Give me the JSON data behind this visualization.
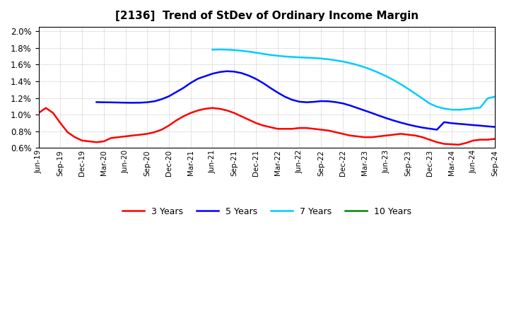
{
  "title": "[2136]  Trend of StDev of Ordinary Income Margin",
  "title_fontsize": 11,
  "ylim": [
    0.006,
    0.0205
  ],
  "yticks": [
    0.006,
    0.008,
    0.01,
    0.012,
    0.014,
    0.016,
    0.018,
    0.02
  ],
  "background_color": "#ffffff",
  "grid_color": "#888888",
  "series": {
    "3 Years": {
      "color": "#ff0000",
      "x": [
        0,
        1,
        2,
        3,
        4,
        5,
        6,
        7,
        8,
        9,
        10,
        11,
        12,
        13,
        14,
        15,
        16,
        17,
        18,
        19,
        20,
        21,
        22,
        23,
        24,
        25,
        26,
        27,
        28,
        29,
        30,
        31,
        32,
        33,
        34,
        35,
        36,
        37,
        38,
        39,
        40,
        41,
        42,
        43,
        44,
        45,
        46,
        47,
        48,
        49,
        50,
        51,
        52,
        53,
        54,
        55,
        56,
        57,
        58,
        59,
        60,
        61,
        62,
        63
      ],
      "y": [
        0.0102,
        0.0108,
        0.0102,
        0.009,
        0.0079,
        0.0073,
        0.0069,
        0.0068,
        0.0067,
        0.0068,
        0.0072,
        0.0073,
        0.0074,
        0.0075,
        0.0076,
        0.0077,
        0.0079,
        0.0082,
        0.0087,
        0.0093,
        0.0098,
        0.0102,
        0.0105,
        0.0107,
        0.0108,
        0.0107,
        0.0105,
        0.0102,
        0.0098,
        0.0094,
        0.009,
        0.0087,
        0.0085,
        0.0083,
        0.0083,
        0.0083,
        0.0084,
        0.0084,
        0.0083,
        0.0082,
        0.0081,
        0.0079,
        0.0077,
        0.0075,
        0.0074,
        0.0073,
        0.0073,
        0.0074,
        0.0075,
        0.0076,
        0.0077,
        0.0076,
        0.0075,
        0.0073,
        0.007,
        0.0067,
        0.0065,
        0.00645,
        0.0064,
        0.0066,
        0.0069,
        0.007,
        0.007,
        0.0071
      ]
    },
    "5 Years": {
      "color": "#0000ff",
      "x": [
        8,
        9,
        10,
        11,
        12,
        13,
        14,
        15,
        16,
        17,
        18,
        19,
        20,
        21,
        22,
        23,
        24,
        25,
        26,
        27,
        28,
        29,
        30,
        31,
        32,
        33,
        34,
        35,
        36,
        37,
        38,
        39,
        40,
        41,
        42,
        43,
        44,
        45,
        46,
        47,
        48,
        49,
        50,
        51,
        52,
        53,
        54,
        55,
        56,
        57,
        58,
        59,
        60,
        61,
        62,
        63
      ],
      "y": [
        0.0115,
        0.01148,
        0.01147,
        0.01145,
        0.01143,
        0.01142,
        0.01143,
        0.01148,
        0.0116,
        0.01185,
        0.0122,
        0.0127,
        0.0132,
        0.0138,
        0.0143,
        0.0146,
        0.0149,
        0.0151,
        0.0152,
        0.01515,
        0.01498,
        0.01468,
        0.01428,
        0.01378,
        0.0132,
        0.01265,
        0.01215,
        0.01178,
        0.01155,
        0.01148,
        0.01153,
        0.01162,
        0.0116,
        0.0115,
        0.01135,
        0.0111,
        0.0108,
        0.0105,
        0.0102,
        0.00988,
        0.00958,
        0.0093,
        0.00905,
        0.00882,
        0.00862,
        0.00845,
        0.00832,
        0.0082,
        0.0091,
        0.00898,
        0.0089,
        0.00883,
        0.00875,
        0.00868,
        0.0086,
        0.00853
      ]
    },
    "7 Years": {
      "color": "#00ccff",
      "x": [
        24,
        25,
        26,
        27,
        28,
        29,
        30,
        31,
        32,
        33,
        34,
        35,
        36,
        37,
        38,
        39,
        40,
        41,
        42,
        43,
        44,
        45,
        46,
        47,
        48,
        49,
        50,
        51,
        52,
        53,
        54,
        55,
        56,
        57,
        58,
        59,
        60,
        61,
        62,
        63
      ],
      "y": [
        0.01778,
        0.0178,
        0.01778,
        0.01773,
        0.01765,
        0.01755,
        0.01742,
        0.01728,
        0.01715,
        0.01705,
        0.01697,
        0.01691,
        0.01686,
        0.01682,
        0.01678,
        0.01672,
        0.01663,
        0.01651,
        0.01636,
        0.01617,
        0.01595,
        0.01568,
        0.01536,
        0.015,
        0.0146,
        0.01415,
        0.01365,
        0.0131,
        0.01252,
        0.01193,
        0.01133,
        0.01095,
        0.01073,
        0.0106,
        0.01058,
        0.01065,
        0.01075,
        0.01085,
        0.01195,
        0.01215
      ]
    },
    "10 Years": {
      "color": "#008800",
      "x": [],
      "y": []
    }
  },
  "x_labels": [
    "Jun-19",
    "Sep-19",
    "Dec-19",
    "Mar-20",
    "Jun-20",
    "Sep-20",
    "Dec-20",
    "Mar-21",
    "Jun-21",
    "Sep-21",
    "Dec-21",
    "Mar-22",
    "Jun-22",
    "Sep-22",
    "Dec-22",
    "Mar-23",
    "Jun-23",
    "Sep-23",
    "Dec-23",
    "Mar-24",
    "Jun-24",
    "Sep-24"
  ],
  "tick_step": 3
}
